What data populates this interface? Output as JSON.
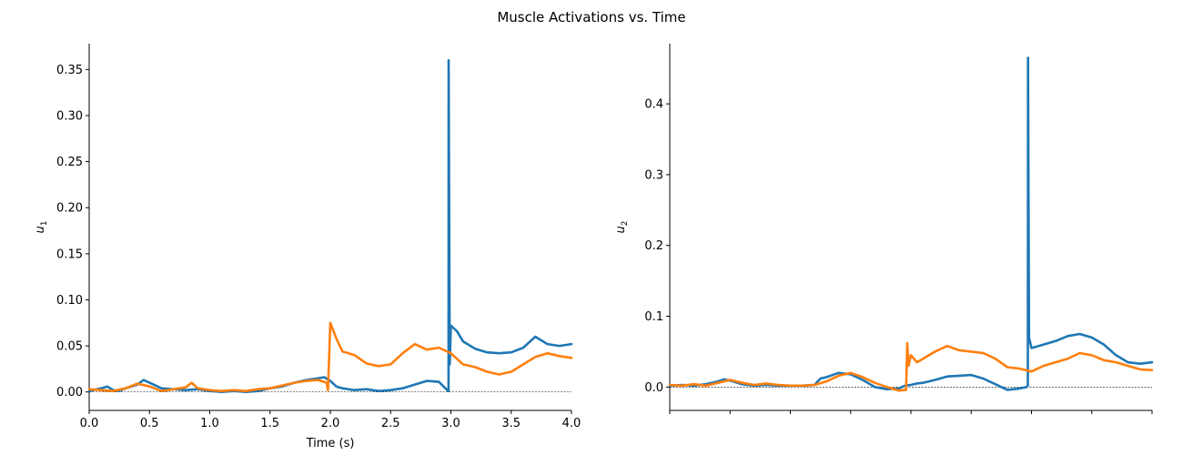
{
  "figure": {
    "title": "Muscle Activations vs. Time"
  },
  "colors": {
    "series_1": "#1f77b4",
    "series_2": "#ff7f0e"
  },
  "chart_data": [
    {
      "type": "line",
      "ylabel_base": "u",
      "ylabel_sub": "1",
      "xlabel": "Time (s)",
      "xlim": [
        0.0,
        4.0
      ],
      "ylim": [
        -0.02,
        0.378
      ],
      "x_ticks": [
        0.0,
        0.5,
        1.0,
        1.5,
        2.0,
        2.5,
        3.0,
        3.5,
        4.0
      ],
      "x_tick_labels": [
        "0.0",
        "0.5",
        "1.0",
        "1.5",
        "2.0",
        "2.5",
        "3.0",
        "3.5",
        "4.0"
      ],
      "y_ticks": [
        0.0,
        0.05,
        0.1,
        0.15,
        0.2,
        0.25,
        0.3,
        0.35
      ],
      "y_tick_labels": [
        "0.00",
        "0.05",
        "0.10",
        "0.15",
        "0.20",
        "0.25",
        "0.30",
        "0.35"
      ],
      "zero_line": true,
      "series": [
        {
          "color_key": "series_1",
          "x": [
            0.0,
            0.1,
            0.15,
            0.2,
            0.25,
            0.3,
            0.4,
            0.45,
            0.5,
            0.6,
            0.7,
            0.8,
            0.9,
            1.0,
            1.1,
            1.2,
            1.3,
            1.4,
            1.5,
            1.6,
            1.7,
            1.8,
            1.9,
            1.95,
            2.0,
            2.05,
            2.1,
            2.2,
            2.3,
            2.4,
            2.5,
            2.6,
            2.7,
            2.8,
            2.9,
            2.97,
            2.98,
            2.981,
            2.99,
            3.0,
            3.05,
            3.1,
            3.2,
            3.3,
            3.4,
            3.5,
            3.6,
            3.7,
            3.8,
            3.9,
            4.0
          ],
          "y": [
            0.001,
            0.004,
            0.006,
            0.002,
            0.001,
            0.004,
            0.008,
            0.013,
            0.01,
            0.004,
            0.003,
            0.002,
            0.003,
            0.001,
            0.0,
            0.001,
            0.0,
            0.001,
            0.004,
            0.006,
            0.01,
            0.013,
            0.015,
            0.016,
            0.012,
            0.006,
            0.004,
            0.002,
            0.003,
            0.001,
            0.002,
            0.004,
            0.008,
            0.012,
            0.011,
            0.002,
            0.001,
            0.36,
            0.03,
            0.072,
            0.066,
            0.055,
            0.047,
            0.043,
            0.042,
            0.043,
            0.048,
            0.06,
            0.052,
            0.05,
            0.052
          ]
        },
        {
          "color_key": "series_2",
          "x": [
            0.0,
            0.1,
            0.2,
            0.3,
            0.4,
            0.5,
            0.6,
            0.7,
            0.8,
            0.85,
            0.9,
            1.0,
            1.1,
            1.2,
            1.3,
            1.4,
            1.5,
            1.6,
            1.7,
            1.8,
            1.9,
            1.97,
            1.98,
            2.0,
            2.05,
            2.1,
            2.2,
            2.3,
            2.4,
            2.5,
            2.6,
            2.7,
            2.8,
            2.9,
            3.0,
            3.1,
            3.2,
            3.3,
            3.4,
            3.5,
            3.6,
            3.7,
            3.8,
            3.9,
            4.0
          ],
          "y": [
            0.003,
            0.002,
            0.001,
            0.004,
            0.009,
            0.006,
            0.001,
            0.003,
            0.005,
            0.01,
            0.004,
            0.002,
            0.001,
            0.002,
            0.001,
            0.003,
            0.004,
            0.007,
            0.01,
            0.012,
            0.013,
            0.01,
            0.002,
            0.075,
            0.058,
            0.044,
            0.04,
            0.031,
            0.028,
            0.03,
            0.042,
            0.052,
            0.046,
            0.048,
            0.042,
            0.03,
            0.027,
            0.022,
            0.019,
            0.022,
            0.03,
            0.038,
            0.042,
            0.039,
            0.037
          ]
        }
      ]
    },
    {
      "type": "line",
      "ylabel_base": "u",
      "ylabel_sub": "2",
      "xlabel": "",
      "xlim": [
        0.0,
        4.0
      ],
      "ylim": [
        -0.033,
        0.485
      ],
      "x_ticks": [
        0.0,
        0.5,
        1.0,
        1.5,
        2.0,
        2.5,
        3.0,
        3.5,
        4.0
      ],
      "x_tick_labels": [],
      "y_ticks": [
        0.0,
        0.1,
        0.2,
        0.3,
        0.4
      ],
      "y_tick_labels": [
        "0.0",
        "0.1",
        "0.2",
        "0.3",
        "0.4"
      ],
      "zero_line": true,
      "series": [
        {
          "color_key": "series_1",
          "x": [
            0.0,
            0.1,
            0.2,
            0.3,
            0.4,
            0.45,
            0.5,
            0.6,
            0.7,
            0.8,
            0.9,
            1.0,
            1.1,
            1.2,
            1.25,
            1.3,
            1.4,
            1.5,
            1.6,
            1.7,
            1.8,
            1.9,
            1.95,
            2.0,
            2.05,
            2.1,
            2.2,
            2.3,
            2.4,
            2.5,
            2.6,
            2.7,
            2.8,
            2.9,
            2.96,
            2.97,
            2.971,
            2.98,
            3.0,
            3.1,
            3.2,
            3.3,
            3.4,
            3.5,
            3.6,
            3.7,
            3.8,
            3.9,
            4.0
          ],
          "y": [
            0.002,
            0.003,
            0.002,
            0.004,
            0.008,
            0.011,
            0.009,
            0.004,
            0.002,
            0.003,
            0.002,
            0.002,
            0.002,
            0.003,
            0.012,
            0.014,
            0.02,
            0.018,
            0.01,
            0.0,
            -0.003,
            -0.002,
            0.002,
            0.003,
            0.005,
            0.006,
            0.01,
            0.015,
            0.016,
            0.017,
            0.012,
            0.004,
            -0.004,
            -0.002,
            0.0,
            0.002,
            0.465,
            0.07,
            0.055,
            0.06,
            0.065,
            0.072,
            0.075,
            0.07,
            0.06,
            0.045,
            0.035,
            0.033,
            0.035
          ]
        },
        {
          "color_key": "series_2",
          "x": [
            0.0,
            0.1,
            0.2,
            0.3,
            0.4,
            0.5,
            0.6,
            0.7,
            0.8,
            0.9,
            1.0,
            1.1,
            1.2,
            1.3,
            1.4,
            1.5,
            1.6,
            1.7,
            1.8,
            1.9,
            1.96,
            1.97,
            1.98,
            2.0,
            2.05,
            2.1,
            2.2,
            2.3,
            2.4,
            2.5,
            2.6,
            2.7,
            2.8,
            2.9,
            3.0,
            3.1,
            3.2,
            3.3,
            3.4,
            3.5,
            3.6,
            3.7,
            3.8,
            3.9,
            4.0
          ],
          "y": [
            0.003,
            0.002,
            0.004,
            0.002,
            0.006,
            0.01,
            0.006,
            0.003,
            0.005,
            0.003,
            0.002,
            0.002,
            0.003,
            0.008,
            0.016,
            0.02,
            0.014,
            0.006,
            0.0,
            -0.005,
            -0.004,
            0.062,
            0.03,
            0.045,
            0.035,
            0.04,
            0.05,
            0.058,
            0.052,
            0.05,
            0.048,
            0.04,
            0.028,
            0.026,
            0.022,
            0.03,
            0.035,
            0.04,
            0.048,
            0.045,
            0.038,
            0.035,
            0.03,
            0.025,
            0.024
          ]
        }
      ]
    }
  ]
}
